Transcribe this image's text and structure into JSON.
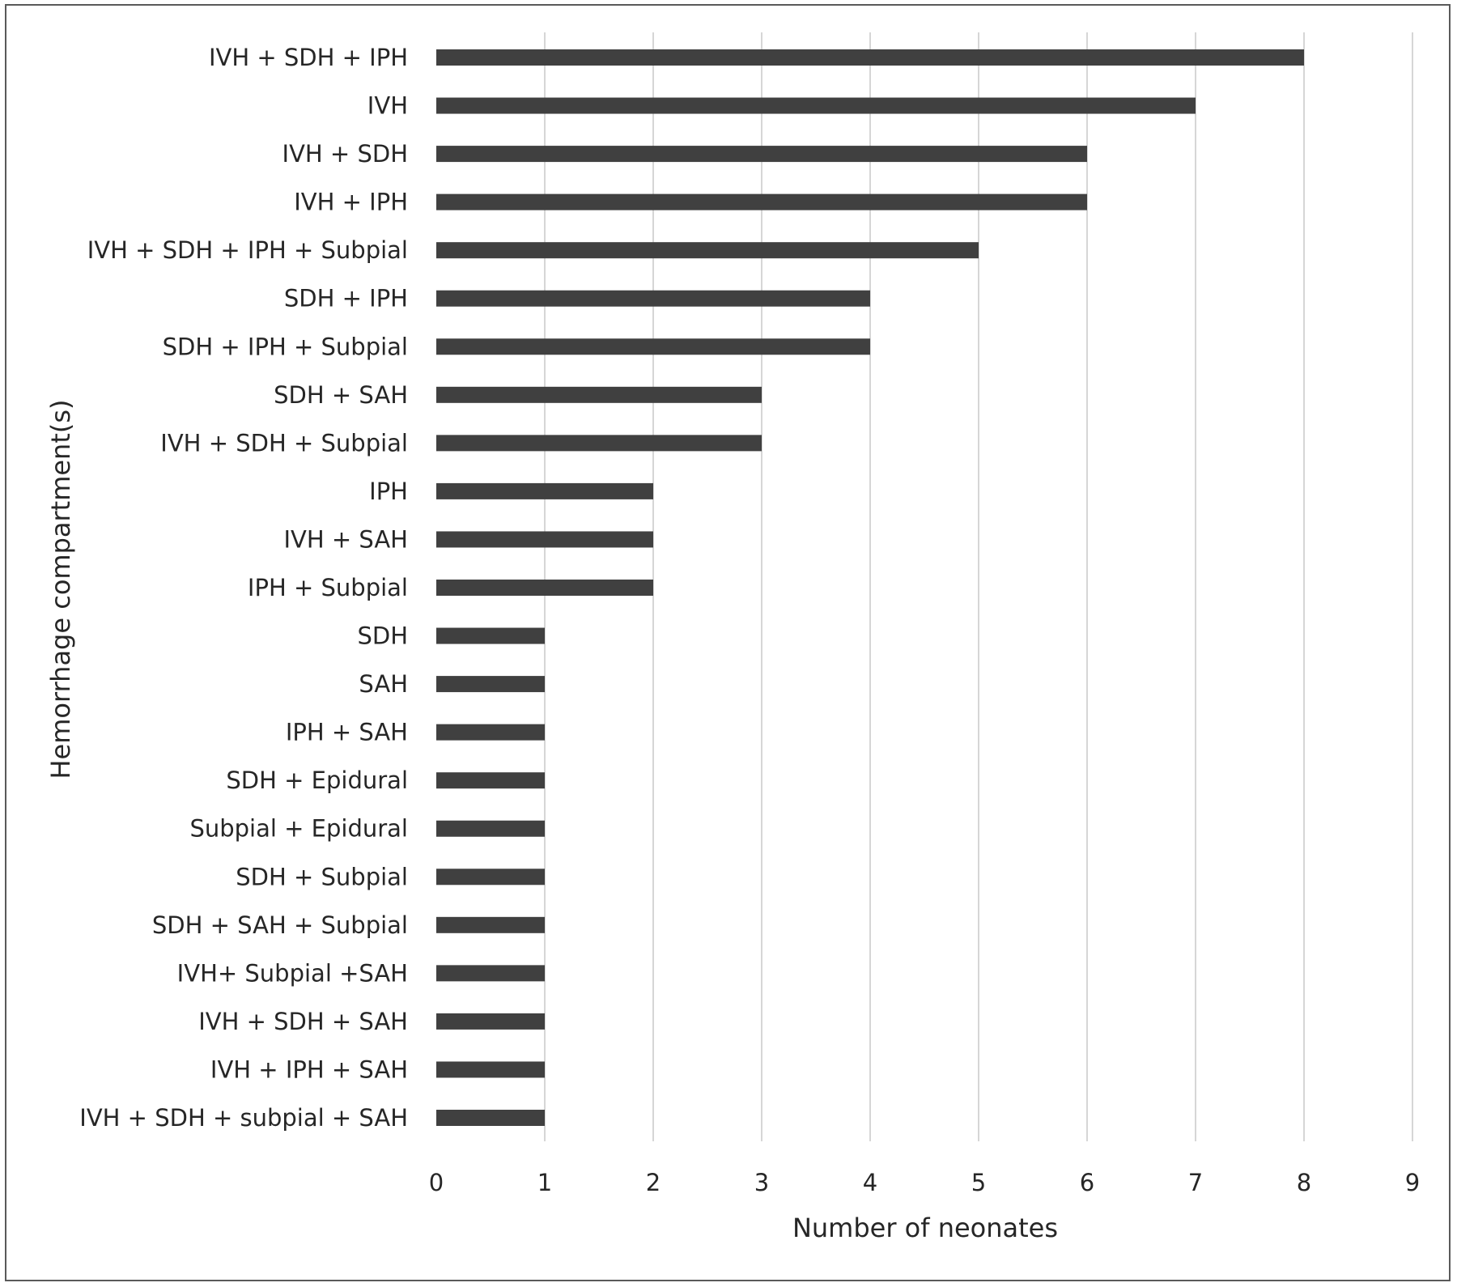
{
  "chart_data": {
    "type": "bar",
    "orientation": "horizontal",
    "xlabel": "Number of neonates",
    "ylabel": "Hemorrhage compartment(s)",
    "xlim": [
      0,
      9
    ],
    "x_ticks": [
      "0",
      "1",
      "2",
      "3",
      "4",
      "5",
      "6",
      "7",
      "8",
      "9"
    ],
    "grid": "vertical",
    "bar_color": "#404040",
    "categories": [
      "IVH + SDH + IPH",
      "IVH",
      "IVH + SDH",
      "IVH + IPH",
      "IVH + SDH + IPH + Subpial",
      "SDH + IPH",
      "SDH + IPH + Subpial",
      "SDH + SAH",
      "IVH + SDH + Subpial",
      "IPH",
      "IVH + SAH",
      "IPH + Subpial",
      "SDH",
      "SAH",
      "IPH + SAH",
      "SDH + Epidural",
      "Subpial + Epidural",
      "SDH + Subpial",
      "SDH + SAH + Subpial",
      "IVH+ Subpial +SAH",
      "IVH + SDH + SAH",
      "IVH + IPH + SAH",
      "IVH + SDH + subpial + SAH"
    ],
    "values": [
      8,
      7,
      6,
      6,
      5,
      4,
      4,
      3,
      3,
      2,
      2,
      2,
      1,
      1,
      1,
      1,
      1,
      1,
      1,
      1,
      1,
      1,
      1
    ]
  }
}
